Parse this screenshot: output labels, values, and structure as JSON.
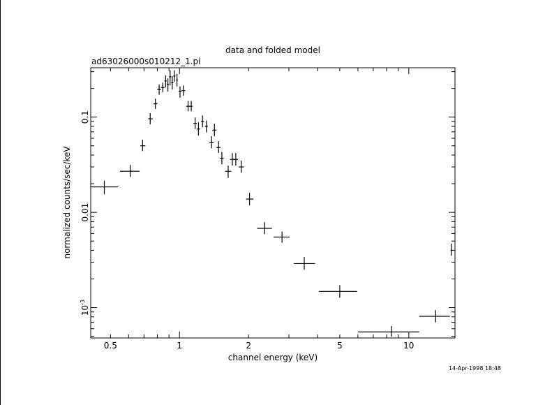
{
  "chart_data": {
    "type": "scatter",
    "title": "data and folded model",
    "subtitle": "ad63026000s010212_1.pi",
    "xlabel": "channel energy (keV)",
    "ylabel": "normalized counts/sec/keV",
    "timestamp": "14-Apr-1998 18:48",
    "x_scale": "log",
    "y_scale": "log",
    "xlim": [
      0.41,
      15.9
    ],
    "ylim": [
      0.00048,
      0.33
    ],
    "x_ticks": [
      {
        "value": 0.5,
        "label": "0.5"
      },
      {
        "value": 1,
        "label": "1"
      },
      {
        "value": 2,
        "label": "2"
      },
      {
        "value": 5,
        "label": "5"
      },
      {
        "value": 10,
        "label": "10"
      }
    ],
    "y_ticks": [
      {
        "value": 0.001,
        "label": "10",
        "sup": "-3"
      },
      {
        "value": 0.01,
        "label": "0.01",
        "sup": ""
      },
      {
        "value": 0.1,
        "label": "0.1",
        "sup": ""
      }
    ],
    "grid": false,
    "series": [
      {
        "marker": "crosses",
        "color": "#000000",
        "points": [
          {
            "x": 0.47,
            "xlo": 0.41,
            "xhi": 0.54,
            "y": 0.0185,
            "ylo": 0.0155,
            "yhi": 0.0215
          },
          {
            "x": 0.61,
            "xlo": 0.55,
            "xhi": 0.67,
            "y": 0.027,
            "ylo": 0.0235,
            "yhi": 0.0315
          },
          {
            "x": 0.69,
            "xlo": 0.675,
            "xhi": 0.71,
            "y": 0.05,
            "ylo": 0.044,
            "yhi": 0.058
          },
          {
            "x": 0.745,
            "xlo": 0.73,
            "xhi": 0.765,
            "y": 0.096,
            "ylo": 0.084,
            "yhi": 0.11
          },
          {
            "x": 0.785,
            "xlo": 0.77,
            "xhi": 0.8,
            "y": 0.138,
            "ylo": 0.122,
            "yhi": 0.156
          },
          {
            "x": 0.815,
            "xlo": 0.8,
            "xhi": 0.83,
            "y": 0.195,
            "ylo": 0.172,
            "yhi": 0.22
          },
          {
            "x": 0.845,
            "xlo": 0.83,
            "xhi": 0.86,
            "y": 0.205,
            "ylo": 0.183,
            "yhi": 0.23
          },
          {
            "x": 0.87,
            "xlo": 0.86,
            "xhi": 0.88,
            "y": 0.24,
            "ylo": 0.205,
            "yhi": 0.275
          },
          {
            "x": 0.89,
            "xlo": 0.88,
            "xhi": 0.9,
            "y": 0.22,
            "ylo": 0.185,
            "yhi": 0.255
          },
          {
            "x": 0.91,
            "xlo": 0.9,
            "xhi": 0.92,
            "y": 0.265,
            "ylo": 0.215,
            "yhi": 0.31
          },
          {
            "x": 0.93,
            "xlo": 0.92,
            "xhi": 0.94,
            "y": 0.23,
            "ylo": 0.195,
            "yhi": 0.27
          },
          {
            "x": 0.95,
            "xlo": 0.94,
            "xhi": 0.96,
            "y": 0.27,
            "ylo": 0.235,
            "yhi": 0.31
          },
          {
            "x": 0.975,
            "xlo": 0.965,
            "xhi": 0.985,
            "y": 0.245,
            "ylo": 0.21,
            "yhi": 0.285
          },
          {
            "x": 1.005,
            "xlo": 0.99,
            "xhi": 1.02,
            "y": 0.185,
            "ylo": 0.16,
            "yhi": 0.21
          },
          {
            "x": 1.04,
            "xlo": 1.02,
            "xhi": 1.06,
            "y": 0.19,
            "ylo": 0.168,
            "yhi": 0.215
          },
          {
            "x": 1.09,
            "xlo": 1.07,
            "xhi": 1.11,
            "y": 0.13,
            "ylo": 0.115,
            "yhi": 0.148
          },
          {
            "x": 1.125,
            "xlo": 1.11,
            "xhi": 1.14,
            "y": 0.13,
            "ylo": 0.115,
            "yhi": 0.148
          },
          {
            "x": 1.17,
            "xlo": 1.15,
            "xhi": 1.19,
            "y": 0.086,
            "ylo": 0.075,
            "yhi": 0.099
          },
          {
            "x": 1.21,
            "xlo": 1.19,
            "xhi": 1.23,
            "y": 0.075,
            "ylo": 0.064,
            "yhi": 0.088
          },
          {
            "x": 1.26,
            "xlo": 1.24,
            "xhi": 1.28,
            "y": 0.09,
            "ylo": 0.078,
            "yhi": 0.104
          },
          {
            "x": 1.31,
            "xlo": 1.29,
            "xhi": 1.33,
            "y": 0.08,
            "ylo": 0.069,
            "yhi": 0.092
          },
          {
            "x": 1.38,
            "xlo": 1.35,
            "xhi": 1.41,
            "y": 0.054,
            "ylo": 0.047,
            "yhi": 0.063
          },
          {
            "x": 1.42,
            "xlo": 1.39,
            "xhi": 1.45,
            "y": 0.073,
            "ylo": 0.063,
            "yhi": 0.085
          },
          {
            "x": 1.48,
            "xlo": 1.45,
            "xhi": 1.51,
            "y": 0.048,
            "ylo": 0.042,
            "yhi": 0.056
          },
          {
            "x": 1.53,
            "xlo": 1.5,
            "xhi": 1.56,
            "y": 0.037,
            "ylo": 0.032,
            "yhi": 0.043
          },
          {
            "x": 1.63,
            "xlo": 1.58,
            "xhi": 1.68,
            "y": 0.027,
            "ylo": 0.023,
            "yhi": 0.031
          },
          {
            "x": 1.7,
            "xlo": 1.66,
            "xhi": 1.74,
            "y": 0.036,
            "ylo": 0.031,
            "yhi": 0.042
          },
          {
            "x": 1.76,
            "xlo": 1.72,
            "xhi": 1.8,
            "y": 0.036,
            "ylo": 0.031,
            "yhi": 0.042
          },
          {
            "x": 1.86,
            "xlo": 1.81,
            "xhi": 1.91,
            "y": 0.03,
            "ylo": 0.026,
            "yhi": 0.035
          },
          {
            "x": 2.02,
            "xlo": 1.95,
            "xhi": 2.1,
            "y": 0.0138,
            "ylo": 0.0119,
            "yhi": 0.016
          },
          {
            "x": 2.35,
            "xlo": 2.18,
            "xhi": 2.53,
            "y": 0.0068,
            "ylo": 0.0059,
            "yhi": 0.0079
          },
          {
            "x": 2.8,
            "xlo": 2.57,
            "xhi": 3.02,
            "y": 0.0055,
            "ylo": 0.0048,
            "yhi": 0.0063
          },
          {
            "x": 3.5,
            "xlo": 3.15,
            "xhi": 3.9,
            "y": 0.0029,
            "ylo": 0.0025,
            "yhi": 0.0034
          },
          {
            "x": 5.0,
            "xlo": 4.05,
            "xhi": 5.95,
            "y": 0.00148,
            "ylo": 0.00127,
            "yhi": 0.00172
          },
          {
            "x": 8.4,
            "xlo": 6.0,
            "xhi": 11.1,
            "y": 0.000555,
            "ylo": 0.000495,
            "yhi": 0.00064
          },
          {
            "x": 13.1,
            "xlo": 11.1,
            "xhi": 15.1,
            "y": 0.00081,
            "ylo": 0.0007,
            "yhi": 0.00094
          },
          {
            "x": 15.35,
            "xlo": 15.2,
            "xhi": 15.5,
            "y": 0.004,
            "ylo": 0.0035,
            "yhi": 0.0047
          }
        ]
      }
    ]
  }
}
